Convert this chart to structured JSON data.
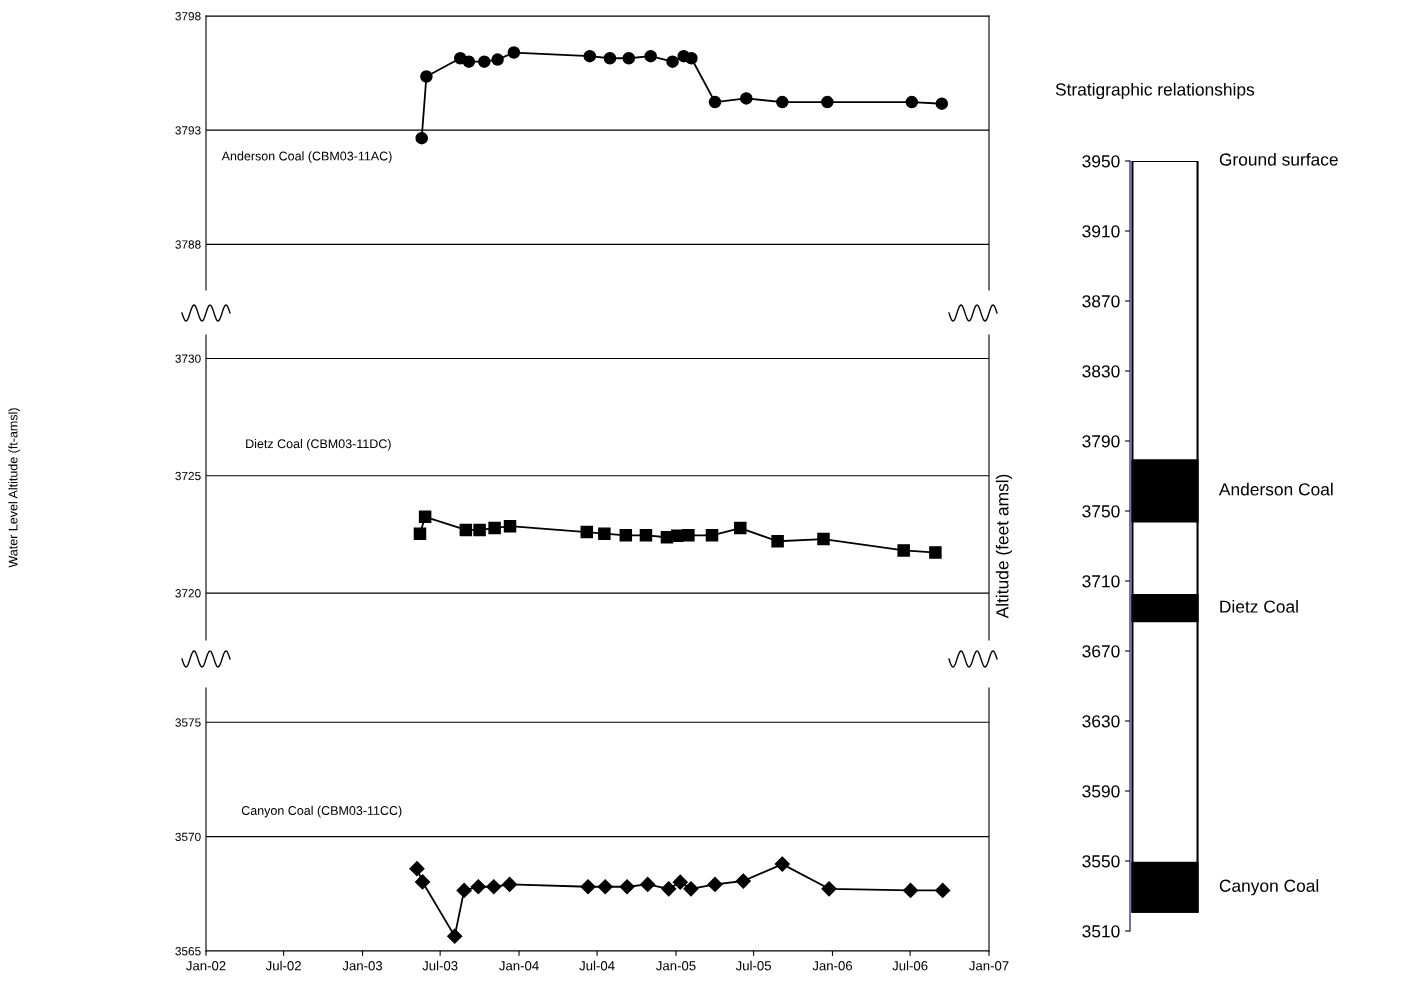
{
  "chart_data": [
    {
      "type": "line",
      "color": "#000000",
      "marker": "circle",
      "grid": "y",
      "tick_labels": "y",
      "annotations": [
        "Anderson Coal (CBM03-11AC)"
      ],
      "x": [
        "2003-05-19",
        "2003-05-30",
        "2003-08-17",
        "2003-09-06",
        "2003-10-12",
        "2003-11-12",
        "2003-12-20",
        "2004-06-14",
        "2004-07-31",
        "2004-09-13",
        "2004-11-03",
        "2004-12-24",
        "2005-01-19",
        "2005-02-06",
        "2005-04-02",
        "2005-06-14",
        "2005-09-06",
        "2005-12-20",
        "2006-07-05",
        "2006-09-13"
      ],
      "values": [
        3792.65,
        3795.35,
        3796.15,
        3796.0,
        3796.0,
        3796.09,
        3796.4,
        3796.24,
        3796.15,
        3796.15,
        3796.24,
        3796.0,
        3796.24,
        3796.15,
        3794.23,
        3794.39,
        3794.23,
        3794.23,
        3794.23,
        3794.16
      ],
      "xlim": [
        "2002-01-01",
        "2007-01-01"
      ],
      "ylim": [
        3786,
        3798
      ],
      "yticks": [
        3788,
        3793,
        3798
      ]
    },
    {
      "type": "line",
      "color": "#000000",
      "marker": "square",
      "grid": "y",
      "tick_labels": "y",
      "annotations": [
        "Dietz Coal (CBM03-11DC)"
      ],
      "ylabel": "Water Level Altitude (ft-amsl)",
      "x": [
        "2003-05-15",
        "2003-05-27",
        "2003-08-30",
        "2003-10-01",
        "2003-11-05",
        "2003-12-11",
        "2004-06-07",
        "2004-07-18",
        "2004-09-06",
        "2004-10-23",
        "2004-12-11",
        "2005-01-04",
        "2005-01-30",
        "2005-03-26",
        "2005-05-31",
        "2005-08-26",
        "2005-12-11",
        "2006-06-16",
        "2006-08-29"
      ],
      "values": [
        3722.53,
        3723.25,
        3722.69,
        3722.69,
        3722.77,
        3722.85,
        3722.6,
        3722.53,
        3722.46,
        3722.46,
        3722.38,
        3722.44,
        3722.46,
        3722.46,
        3722.77,
        3722.21,
        3722.3,
        3721.82,
        3721.73
      ],
      "xlim": [
        "2002-01-01",
        "2007-01-01"
      ],
      "ylim": [
        3718,
        3731
      ],
      "yticks": [
        3720,
        3725,
        3730
      ]
    },
    {
      "type": "line",
      "color": "#000000",
      "marker": "diamond",
      "grid": "y",
      "annotations": [
        "Canyon Coal (CBM03-11CC)"
      ],
      "x": [
        "2003-05-08",
        "2003-05-21",
        "2003-08-04",
        "2003-08-26",
        "2003-09-28",
        "2003-11-03",
        "2003-12-10",
        "2004-06-10",
        "2004-07-20",
        "2004-09-09",
        "2004-10-27",
        "2004-12-15",
        "2005-01-11",
        "2005-02-05",
        "2005-04-02",
        "2005-06-07",
        "2005-09-06",
        "2005-12-24",
        "2006-07-02",
        "2006-09-15"
      ],
      "values": [
        3568.6,
        3568.02,
        3565.65,
        3567.65,
        3567.81,
        3567.81,
        3567.91,
        3567.81,
        3567.81,
        3567.81,
        3567.91,
        3567.72,
        3568.01,
        3567.72,
        3567.91,
        3568.06,
        3568.8,
        3567.72,
        3567.65,
        3567.65
      ],
      "xlim": [
        "2002-01-01",
        "2007-01-01"
      ],
      "ylim": [
        3565,
        3576.5
      ],
      "yticks": [
        3565,
        3570,
        3575
      ],
      "xticks": [
        {
          "value": "2002-01-01",
          "label": "Jan-02"
        },
        {
          "value": "2002-07-01",
          "label": "Jul-02"
        },
        {
          "value": "2003-01-01",
          "label": "Jan-03"
        },
        {
          "value": "2003-07-01",
          "label": "Jul-03"
        },
        {
          "value": "2004-01-01",
          "label": "Jan-04"
        },
        {
          "value": "2004-07-01",
          "label": "Jul-04"
        },
        {
          "value": "2005-01-01",
          "label": "Jan-05"
        },
        {
          "value": "2005-07-01",
          "label": "Jul-05"
        },
        {
          "value": "2006-01-01",
          "label": "Jan-06"
        },
        {
          "value": "2006-07-01",
          "label": "Jul-06"
        },
        {
          "value": "2007-01-01",
          "label": "Jan-07"
        }
      ]
    },
    {
      "type": "bar",
      "title": "Stratigraphic relationships",
      "ylabel": "Altitude (feet amsl)",
      "categories": [
        null
      ],
      "tick_labels": "y",
      "annotations": [
        "Ground surface"
      ],
      "series": [
        {
          "color": "#ffffff",
          "base": [
            3521
          ],
          "values": [
            429
          ]
        },
        {
          "name": "Anderson Coal",
          "color": "#000000",
          "base": [
            3744
          ],
          "values": [
            35
          ]
        },
        {
          "name": "Dietz Coal",
          "color": "#000000",
          "base": [
            3687
          ],
          "values": [
            15
          ]
        },
        {
          "name": "Canyon Coal",
          "color": "#000000",
          "base": [
            3521
          ],
          "values": [
            28
          ]
        }
      ],
      "ylim": [
        3510,
        3950
      ],
      "yticks": [
        3510,
        3550,
        3590,
        3630,
        3670,
        3710,
        3750,
        3790,
        3830,
        3870,
        3910,
        3950
      ]
    }
  ]
}
